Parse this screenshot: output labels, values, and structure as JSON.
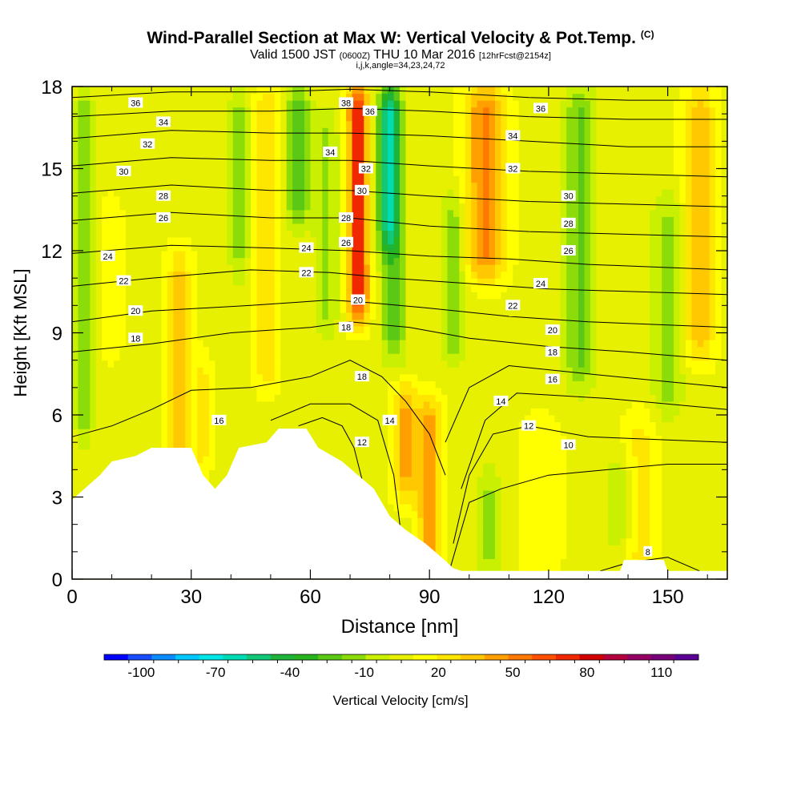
{
  "header": {
    "title": "Wind-Parallel Section at Max W: Vertical Velocity & Pot.Temp.",
    "copyright": "(C)",
    "subtitle_a": "Valid 1500 JST",
    "subtitle_b": "(0600Z)",
    "subtitle_c": "THU 10 Mar 2016",
    "subtitle_d": "[12hrFcst@2154z]",
    "params": "i,j,k,angle=34,23,24,72"
  },
  "colors": {
    "terrain": "#ffffff",
    "contour": "#000000",
    "palette": [
      "#0000ff",
      "#1a4cff",
      "#0a8cff",
      "#00c8ff",
      "#00e6e6",
      "#00dcb4",
      "#10c878",
      "#1eb43c",
      "#28b41e",
      "#5ac814",
      "#8cdc0a",
      "#c8f000",
      "#e6f000",
      "#ffff00",
      "#ffe600",
      "#ffc800",
      "#ffa000",
      "#ff7800",
      "#ff5000",
      "#f02800",
      "#d20000",
      "#b4003c",
      "#960064",
      "#780078",
      "#5a0096"
    ]
  },
  "chart_data": {
    "type": "heatmap",
    "xlabel": "Distance [nm]",
    "ylabel": "Height [Kft MSL]",
    "xlim": [
      0,
      165
    ],
    "ylim": [
      0,
      18
    ],
    "xticks": [
      "0",
      "30",
      "60",
      "90",
      "120",
      "150"
    ],
    "yticks": [
      "0",
      "3",
      "6",
      "9",
      "12",
      "15",
      "18"
    ],
    "colorbar": {
      "label": "Vertical Velocity [cm/s]",
      "ticks": [
        "-100",
        "-70",
        "-40",
        "-10",
        "20",
        "50",
        "80",
        "110"
      ],
      "min": -115,
      "max": 125,
      "step": 10
    },
    "terrain_profile": [
      [
        0,
        2.9
      ],
      [
        7,
        3.8
      ],
      [
        10,
        4.3
      ],
      [
        16,
        4.5
      ],
      [
        20,
        4.8
      ],
      [
        30,
        4.8
      ],
      [
        33,
        3.8
      ],
      [
        36,
        3.3
      ],
      [
        39,
        3.8
      ],
      [
        42,
        4.8
      ],
      [
        49,
        5.0
      ],
      [
        52,
        5.5
      ],
      [
        59,
        5.5
      ],
      [
        62,
        4.8
      ],
      [
        68,
        4.3
      ],
      [
        72,
        3.8
      ],
      [
        76,
        3.3
      ],
      [
        80,
        2.3
      ],
      [
        84,
        1.8
      ],
      [
        89,
        1.3
      ],
      [
        93,
        0.8
      ],
      [
        96,
        0.4
      ],
      [
        98,
        0.3
      ],
      [
        138,
        0.3
      ],
      [
        139,
        0.7
      ],
      [
        149,
        0.7
      ],
      [
        150,
        0.3
      ],
      [
        165,
        0.3
      ]
    ],
    "w_columns": [
      {
        "x": 3,
        "w": -25,
        "sigma": 2.2,
        "z0": 5,
        "z1": 18
      },
      {
        "x": 10,
        "w": 8,
        "sigma": 3,
        "z0": 8,
        "z1": 14
      },
      {
        "x": 27,
        "w": 25,
        "sigma": 3,
        "z0": 0,
        "z1": 12
      },
      {
        "x": 33,
        "w": 20,
        "sigma": 2,
        "z0": 4,
        "z1": 8
      },
      {
        "x": 42,
        "w": -20,
        "sigma": 2.5,
        "z0": 11,
        "z1": 18
      },
      {
        "x": 49,
        "w": 22,
        "sigma": 3,
        "z0": 7,
        "z1": 18
      },
      {
        "x": 57,
        "w": -35,
        "sigma": 3,
        "z0": 13,
        "z1": 18
      },
      {
        "x": 64,
        "w": -20,
        "sigma": 3,
        "z0": 9,
        "z1": 17
      },
      {
        "x": 72,
        "w": 75,
        "sigma": 2.5,
        "z0": 9.5,
        "z1": 18
      },
      {
        "x": 80,
        "w": -70,
        "sigma": 3,
        "z0": 12,
        "z1": 18
      },
      {
        "x": 81,
        "w": -30,
        "sigma": 3,
        "z0": 8,
        "z1": 12
      },
      {
        "x": 84,
        "w": 35,
        "sigma": 3,
        "z0": 3,
        "z1": 7
      },
      {
        "x": 90,
        "w": 40,
        "sigma": 3,
        "z0": 0,
        "z1": 6.5
      },
      {
        "x": 96,
        "w": -25,
        "sigma": 3,
        "z0": 8,
        "z1": 14
      },
      {
        "x": 104,
        "w": 45,
        "sigma": 5,
        "z0": 11,
        "z1": 18
      },
      {
        "x": 105,
        "w": -20,
        "sigma": 3,
        "z0": 0,
        "z1": 4
      },
      {
        "x": 118,
        "w": 8,
        "sigma": 6,
        "z0": 0,
        "z1": 6
      },
      {
        "x": 128,
        "w": -28,
        "sigma": 4,
        "z0": 7,
        "z1": 18
      },
      {
        "x": 138,
        "w": -15,
        "sigma": 4,
        "z0": 1,
        "z1": 4.5
      },
      {
        "x": 143,
        "w": 18,
        "sigma": 4,
        "z0": 0,
        "z1": 6
      },
      {
        "x": 150,
        "w": -20,
        "sigma": 4,
        "z0": 6,
        "z1": 14
      },
      {
        "x": 158,
        "w": 28,
        "sigma": 4,
        "z0": 8,
        "z1": 18
      }
    ],
    "theta_contours": [
      {
        "label": "8",
        "points": [
          [
            133,
            0.3
          ],
          [
            140,
            0.6
          ],
          [
            150,
            0.8
          ],
          [
            158,
            0.3
          ]
        ]
      },
      {
        "label": "10",
        "points": [
          [
            95,
            0.3
          ],
          [
            100,
            2.8
          ],
          [
            108,
            3.3
          ],
          [
            120,
            3.8
          ],
          [
            135,
            4.0
          ],
          [
            150,
            4.2
          ],
          [
            165,
            4.2
          ]
        ]
      },
      {
        "label": "12",
        "points": [
          [
            57,
            5.6
          ],
          [
            63,
            5.9
          ],
          [
            68,
            5.6
          ],
          [
            71,
            4.8
          ],
          [
            75,
            2.5
          ],
          [
            78,
            0.3
          ]
        ]
      },
      {
        "label": "12",
        "points": [
          [
            96,
            1.3
          ],
          [
            100,
            3.8
          ],
          [
            106,
            5.3
          ],
          [
            115,
            5.6
          ],
          [
            130,
            5.2
          ],
          [
            165,
            5.0
          ]
        ]
      },
      {
        "label": "14",
        "points": [
          [
            50,
            5.8
          ],
          [
            60,
            6.4
          ],
          [
            70,
            6.4
          ],
          [
            77,
            5.8
          ],
          [
            81,
            3.8
          ],
          [
            84,
            0.3
          ]
        ]
      },
      {
        "label": "14",
        "points": [
          [
            98,
            3.3
          ],
          [
            104,
            5.8
          ],
          [
            112,
            6.8
          ],
          [
            135,
            6.6
          ],
          [
            165,
            6.2
          ]
        ]
      },
      {
        "label": "16",
        "points": [
          [
            0,
            5.2
          ],
          [
            10,
            5.6
          ],
          [
            20,
            6.2
          ],
          [
            30,
            6.9
          ],
          [
            45,
            7.0
          ],
          [
            60,
            7.4
          ],
          [
            70,
            8.0
          ],
          [
            78,
            7.4
          ],
          [
            84,
            6.5
          ],
          [
            90,
            5.3
          ],
          [
            94,
            3.8
          ]
        ]
      },
      {
        "label": "16",
        "points": [
          [
            94,
            5.0
          ],
          [
            100,
            7.0
          ],
          [
            110,
            7.8
          ],
          [
            130,
            7.5
          ],
          [
            165,
            7.0
          ]
        ]
      },
      {
        "label": "18",
        "points": [
          [
            0,
            8.3
          ],
          [
            20,
            8.6
          ],
          [
            40,
            9.0
          ],
          [
            60,
            9.2
          ],
          [
            70,
            9.4
          ],
          [
            85,
            9.2
          ],
          [
            100,
            8.8
          ],
          [
            120,
            8.5
          ],
          [
            140,
            8.3
          ],
          [
            165,
            8.0
          ]
        ]
      },
      {
        "label": "20",
        "points": [
          [
            0,
            9.4
          ],
          [
            20,
            9.8
          ],
          [
            45,
            10.0
          ],
          [
            65,
            10.2
          ],
          [
            75,
            10.1
          ],
          [
            90,
            9.9
          ],
          [
            110,
            9.6
          ],
          [
            130,
            9.4
          ],
          [
            165,
            9.2
          ]
        ]
      },
      {
        "label": "22",
        "points": [
          [
            0,
            10.7
          ],
          [
            20,
            11.0
          ],
          [
            45,
            11.3
          ],
          [
            65,
            11.2
          ],
          [
            80,
            11.0
          ],
          [
            100,
            10.8
          ],
          [
            120,
            10.6
          ],
          [
            165,
            10.4
          ]
        ]
      },
      {
        "label": "24",
        "points": [
          [
            0,
            11.9
          ],
          [
            25,
            12.2
          ],
          [
            50,
            12.1
          ],
          [
            70,
            12.0
          ],
          [
            90,
            11.8
          ],
          [
            110,
            11.7
          ],
          [
            130,
            11.5
          ],
          [
            165,
            11.3
          ]
        ]
      },
      {
        "label": "26",
        "points": [
          [
            0,
            13.1
          ],
          [
            25,
            13.4
          ],
          [
            50,
            13.2
          ],
          [
            70,
            13.2
          ],
          [
            90,
            12.9
          ],
          [
            115,
            12.7
          ],
          [
            140,
            12.6
          ],
          [
            165,
            12.5
          ]
        ]
      },
      {
        "label": "28",
        "points": [
          [
            0,
            14.1
          ],
          [
            25,
            14.4
          ],
          [
            50,
            14.2
          ],
          [
            70,
            14.2
          ],
          [
            90,
            14.0
          ],
          [
            115,
            13.8
          ],
          [
            140,
            13.7
          ],
          [
            165,
            13.6
          ]
        ]
      },
      {
        "label": "30",
        "points": [
          [
            0,
            15.1
          ],
          [
            25,
            15.4
          ],
          [
            50,
            15.3
          ],
          [
            70,
            15.3
          ],
          [
            90,
            15.1
          ],
          [
            115,
            14.9
          ],
          [
            140,
            14.8
          ],
          [
            165,
            14.7
          ]
        ]
      },
      {
        "label": "32",
        "points": [
          [
            0,
            16.1
          ],
          [
            25,
            16.4
          ],
          [
            50,
            16.3
          ],
          [
            70,
            16.3
          ],
          [
            90,
            16.2
          ],
          [
            115,
            16.0
          ],
          [
            140,
            15.8
          ],
          [
            165,
            15.8
          ]
        ]
      },
      {
        "label": "34",
        "points": [
          [
            0,
            16.9
          ],
          [
            25,
            17.1
          ],
          [
            50,
            17.1
          ],
          [
            70,
            17.2
          ],
          [
            90,
            17.1
          ],
          [
            115,
            16.9
          ],
          [
            140,
            16.8
          ],
          [
            165,
            16.8
          ]
        ]
      },
      {
        "label": "36",
        "points": [
          [
            0,
            17.6
          ],
          [
            25,
            17.8
          ],
          [
            50,
            17.8
          ],
          [
            70,
            17.9
          ],
          [
            90,
            17.8
          ],
          [
            115,
            17.6
          ],
          [
            140,
            17.5
          ],
          [
            165,
            17.5
          ]
        ]
      }
    ],
    "contour_labels": [
      {
        "text": "36",
        "x": 16,
        "y": 17.4
      },
      {
        "text": "34",
        "x": 23,
        "y": 16.7
      },
      {
        "text": "32",
        "x": 19,
        "y": 15.9
      },
      {
        "text": "30",
        "x": 13,
        "y": 14.9
      },
      {
        "text": "28",
        "x": 23,
        "y": 14.0
      },
      {
        "text": "26",
        "x": 23,
        "y": 13.2
      },
      {
        "text": "24",
        "x": 9,
        "y": 11.8
      },
      {
        "text": "22",
        "x": 13,
        "y": 10.9
      },
      {
        "text": "20",
        "x": 16,
        "y": 9.8
      },
      {
        "text": "18",
        "x": 16,
        "y": 8.8
      },
      {
        "text": "16",
        "x": 37,
        "y": 5.8
      },
      {
        "text": "38",
        "x": 69,
        "y": 17.4
      },
      {
        "text": "36",
        "x": 75,
        "y": 17.1
      },
      {
        "text": "34",
        "x": 65,
        "y": 15.6
      },
      {
        "text": "32",
        "x": 74,
        "y": 15.0
      },
      {
        "text": "30",
        "x": 73,
        "y": 14.2
      },
      {
        "text": "28",
        "x": 69,
        "y": 13.2
      },
      {
        "text": "26",
        "x": 69,
        "y": 12.3
      },
      {
        "text": "24",
        "x": 59,
        "y": 12.1
      },
      {
        "text": "22",
        "x": 59,
        "y": 11.2
      },
      {
        "text": "20",
        "x": 72,
        "y": 10.2
      },
      {
        "text": "18",
        "x": 69,
        "y": 9.2
      },
      {
        "text": "18",
        "x": 73,
        "y": 7.4
      },
      {
        "text": "14",
        "x": 80,
        "y": 5.8
      },
      {
        "text": "12",
        "x": 73,
        "y": 5.0
      },
      {
        "text": "36",
        "x": 118,
        "y": 17.2
      },
      {
        "text": "34",
        "x": 111,
        "y": 16.2
      },
      {
        "text": "32",
        "x": 111,
        "y": 15.0
      },
      {
        "text": "30",
        "x": 125,
        "y": 14.0
      },
      {
        "text": "28",
        "x": 125,
        "y": 13.0
      },
      {
        "text": "26",
        "x": 125,
        "y": 12.0
      },
      {
        "text": "24",
        "x": 118,
        "y": 10.8
      },
      {
        "text": "22",
        "x": 111,
        "y": 10.0
      },
      {
        "text": "20",
        "x": 121,
        "y": 9.1
      },
      {
        "text": "18",
        "x": 121,
        "y": 8.3
      },
      {
        "text": "16",
        "x": 121,
        "y": 7.3
      },
      {
        "text": "14",
        "x": 108,
        "y": 6.5
      },
      {
        "text": "12",
        "x": 115,
        "y": 5.6
      },
      {
        "text": "10",
        "x": 125,
        "y": 4.9
      },
      {
        "text": "8",
        "x": 145,
        "y": 1.0
      }
    ]
  }
}
